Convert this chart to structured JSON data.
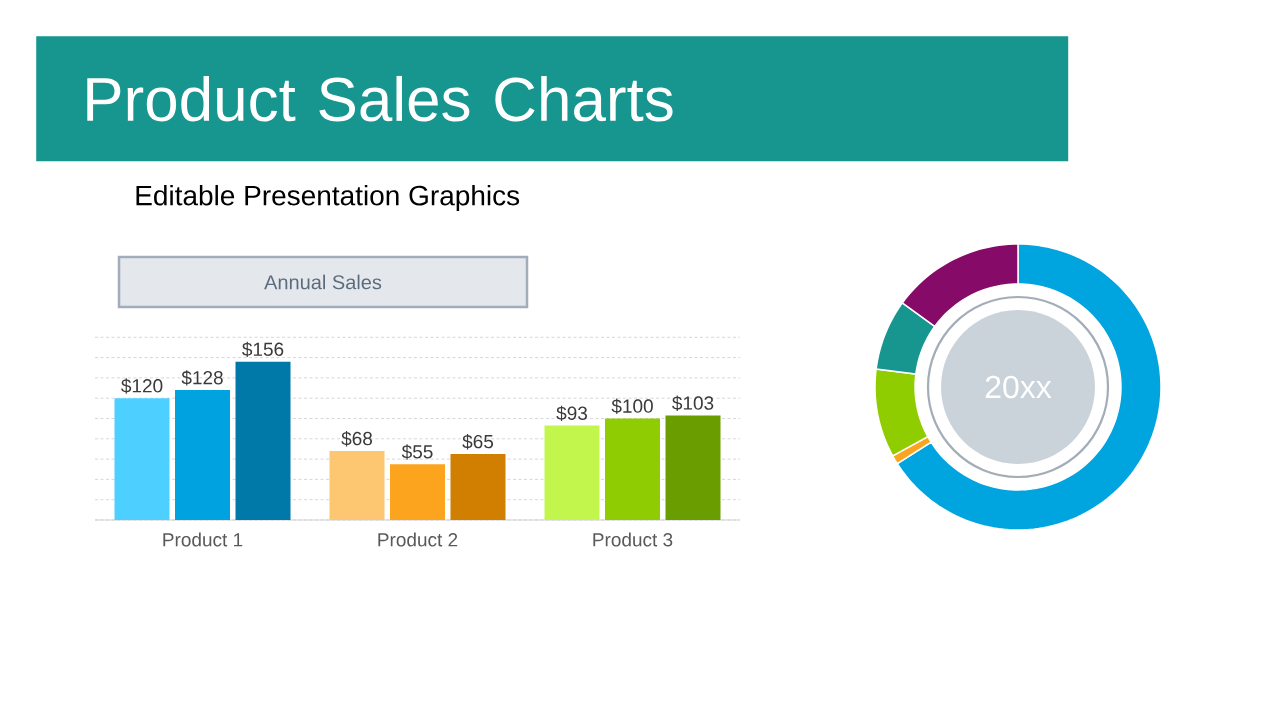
{
  "chart_data": [
    {
      "type": "other",
      "title": "Product Sales Charts",
      "subtitle": "Editable Presentation Graphics"
    },
    {
      "type": "bar",
      "title": "Annual Sales",
      "categories": [
        "Product 1",
        "Product 2",
        "Product 3"
      ],
      "series": [
        {
          "colors": [
            "#4dcfff",
            "#fdc671",
            "#c3f64c"
          ],
          "values": [
            120,
            68,
            93
          ],
          "value_labels": [
            "$120",
            "$68",
            "$93"
          ]
        },
        {
          "colors": [
            "#00a3df",
            "#fda41e",
            "#8fcc02"
          ],
          "values": [
            128,
            55,
            100
          ],
          "value_labels": [
            "$128",
            "$55",
            "$100"
          ]
        },
        {
          "colors": [
            "#0079a8",
            "#d17f00",
            "#6a9e00"
          ],
          "values": [
            156,
            65,
            103
          ],
          "value_labels": [
            "$156",
            "$65",
            "$103"
          ]
        }
      ],
      "ylim": [
        0,
        180
      ],
      "yticks": [
        {
          "value": 0,
          "label": null
        },
        {
          "value": 20,
          "label": null
        },
        {
          "value": 40,
          "label": null
        },
        {
          "value": 60,
          "label": null
        },
        {
          "value": 80,
          "label": null
        },
        {
          "value": 100,
          "label": null
        },
        {
          "value": 120,
          "label": null
        },
        {
          "value": 140,
          "label": null
        },
        {
          "value": 160,
          "label": null
        },
        {
          "value": 180,
          "label": null
        }
      ],
      "grid": "y",
      "tick_labels": "x"
    },
    {
      "type": "donut",
      "title": "20xx",
      "categories": [
        null,
        null,
        null,
        null,
        null
      ],
      "values": [
        66,
        1,
        10,
        8,
        15
      ],
      "colors": [
        "#00a4de",
        "#fda41e",
        "#8fcd00",
        "#179690",
        "#860b69"
      ]
    }
  ]
}
